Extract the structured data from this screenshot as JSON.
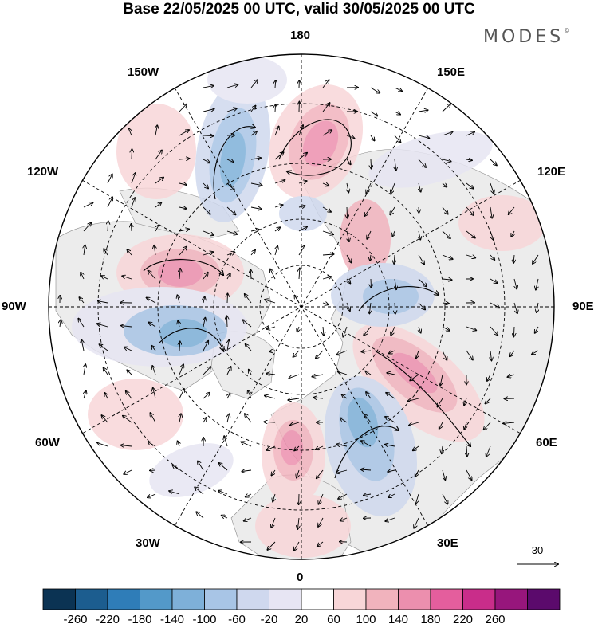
{
  "title": "Base 22/05/2025 00 UTC, valid 30/05/2025 00 UTC",
  "brand": "MODES",
  "brand_mark": "©",
  "longitude_labels": {
    "top": "180",
    "top_left": "150W",
    "top_right": "150E",
    "upper_left": "120W",
    "upper_right": "120E",
    "left": "90W",
    "right": "90E",
    "lower_left": "60W",
    "lower_right": "60E",
    "bottom_left": "30W",
    "bottom_right": "30E",
    "bottom": "0"
  },
  "vector_reference": {
    "label": "30"
  },
  "colorbar": {
    "colors": [
      "#0b3353",
      "#1c5d8f",
      "#2f7db8",
      "#5399c9",
      "#7eb0d9",
      "#a8c5e6",
      "#cfd8ee",
      "#e7e5f3",
      "#ffffff",
      "#f8d6d8",
      "#f1b3bd",
      "#ec8fae",
      "#e45e9d",
      "#c92d8a",
      "#97167c",
      "#5b0a6c"
    ],
    "labels": [
      "-260",
      "-220",
      "-180",
      "-140",
      "-100",
      "-60",
      "-20",
      "20",
      "60",
      "100",
      "140",
      "180",
      "220",
      "260"
    ]
  },
  "anomaly_field": {
    "negative_color": "#3a86c3",
    "positive_color": "#e0559a",
    "land_color": "#eeeeee"
  }
}
